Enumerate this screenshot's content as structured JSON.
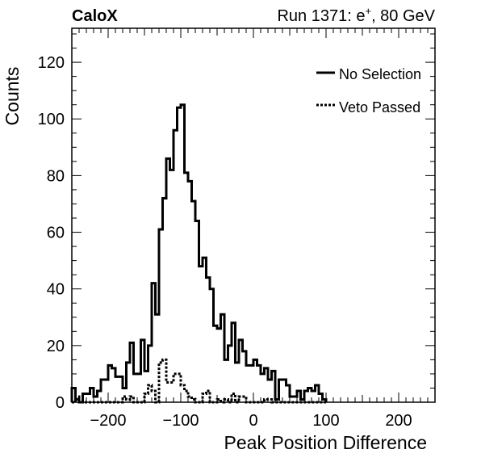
{
  "header": {
    "experiment": "CaloX",
    "run_prefix": "Run 1371: e",
    "run_superscript": "+",
    "run_suffix": ", 80 GeV"
  },
  "chart_data": {
    "type": "histogram",
    "xlabel": "Peak Position Difference",
    "ylabel": "Counts",
    "xlim": [
      -250,
      250
    ],
    "ylim": [
      0,
      132
    ],
    "x_ticks": [
      -200,
      -100,
      0,
      100,
      200
    ],
    "x_tick_labels": [
      "−200",
      "−100",
      "0",
      "100",
      "200"
    ],
    "y_ticks": [
      0,
      20,
      40,
      60,
      80,
      100,
      120
    ],
    "y_tick_labels": [
      "0",
      "20",
      "40",
      "60",
      "80",
      "100",
      "120"
    ],
    "bin_edges_start": -250,
    "bin_width": 5,
    "grid": false,
    "legend_position": "top-right",
    "series": [
      {
        "name": "No Selection",
        "style": "solid",
        "color": "#000000",
        "values": [
          5,
          1,
          0,
          3,
          3,
          5,
          2,
          4,
          8,
          8,
          13,
          12,
          9,
          9,
          5,
          14,
          21,
          10,
          10,
          22,
          11,
          20,
          42,
          31,
          61,
          72,
          86,
          82,
          96,
          104,
          105,
          81,
          78,
          71,
          64,
          48,
          51,
          44,
          40,
          27,
          26,
          31,
          15,
          20,
          28,
          14,
          22,
          18,
          13,
          13,
          15,
          13,
          10,
          12,
          8,
          11,
          1,
          8,
          8,
          6,
          2,
          2,
          4,
          1,
          4,
          5,
          4,
          6,
          3,
          1
        ]
      },
      {
        "name": "Veto Passed",
        "style": "dotted",
        "color": "#000000",
        "values": [
          0,
          2,
          0,
          0,
          0,
          0,
          0,
          0,
          0,
          0,
          0,
          0,
          0,
          0,
          2,
          1,
          2,
          0,
          0,
          0,
          3,
          6,
          4,
          0,
          14,
          15,
          7,
          7,
          10,
          10,
          6,
          4,
          2,
          1,
          0,
          0,
          3,
          4,
          0,
          0,
          1,
          0,
          1,
          0,
          3,
          0,
          2,
          2,
          0,
          0,
          0,
          0,
          0,
          1,
          1,
          0,
          0,
          0,
          0,
          0,
          0,
          0,
          0,
          0,
          0,
          0,
          0,
          0,
          0,
          0
        ]
      }
    ]
  }
}
